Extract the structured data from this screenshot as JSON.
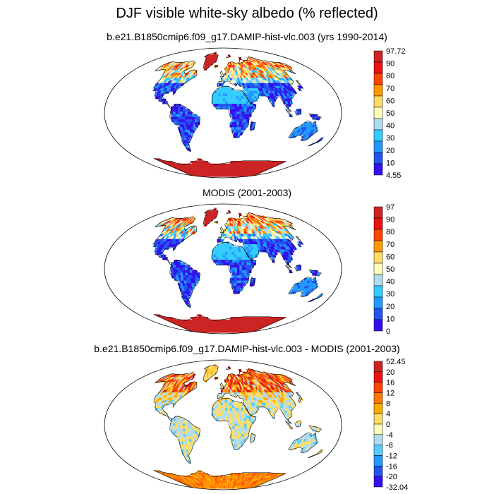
{
  "title": "DJF visible white-sky albedo (% reflected)",
  "colors": {
    "ocean": "#ffffff",
    "coast": "#000000"
  },
  "panels": [
    {
      "title": "b.e21.B1850cmip6.f09_g17.DAMIP-hist-vlc.003 (yrs 1990-2014)",
      "scheme": "abs",
      "colorbar": {
        "labels": [
          "97.72",
          "90",
          "80",
          "70",
          "60",
          "50",
          "40",
          "30",
          "20",
          "10",
          "4.55"
        ],
        "colors": [
          "#cc2222",
          "#ee1111",
          "#ff4400",
          "#ff9900",
          "#ffdd66",
          "#ffffbb",
          "#b0dcf0",
          "#33ccff",
          "#2299ff",
          "#2255ee",
          "#3311ee",
          "#4a1ae8"
        ]
      }
    },
    {
      "title": "MODIS (2001-2003)",
      "scheme": "abs",
      "colorbar": {
        "labels": [
          "97",
          "90",
          "80",
          "70",
          "60",
          "50",
          "40",
          "30",
          "20",
          "10",
          "0"
        ],
        "colors": [
          "#cc2222",
          "#ee1111",
          "#ff4400",
          "#ff9900",
          "#ffdd66",
          "#ffffbb",
          "#b0dcf0",
          "#33ccff",
          "#2299ff",
          "#2255ee",
          "#3311ee",
          "#4a1ae8"
        ]
      }
    },
    {
      "title": "b.e21.B1850cmip6.f09_g17.DAMIP-hist-vlc.003 - MODIS (2001-2003)",
      "scheme": "diff",
      "colorbar": {
        "labels": [
          "52.45",
          "20",
          "16",
          "12",
          "8",
          "4",
          "0",
          "-4",
          "-8",
          "-12",
          "-16",
          "-20",
          "-32.04"
        ],
        "colors": [
          "#cc2222",
          "#ee1111",
          "#ff4400",
          "#ff7700",
          "#ffaa00",
          "#ffdd66",
          "#ffffbb",
          "#b0dcf0",
          "#55ccff",
          "#2299ff",
          "#2255ee",
          "#3311ee",
          "#4a1ae8"
        ]
      }
    }
  ]
}
